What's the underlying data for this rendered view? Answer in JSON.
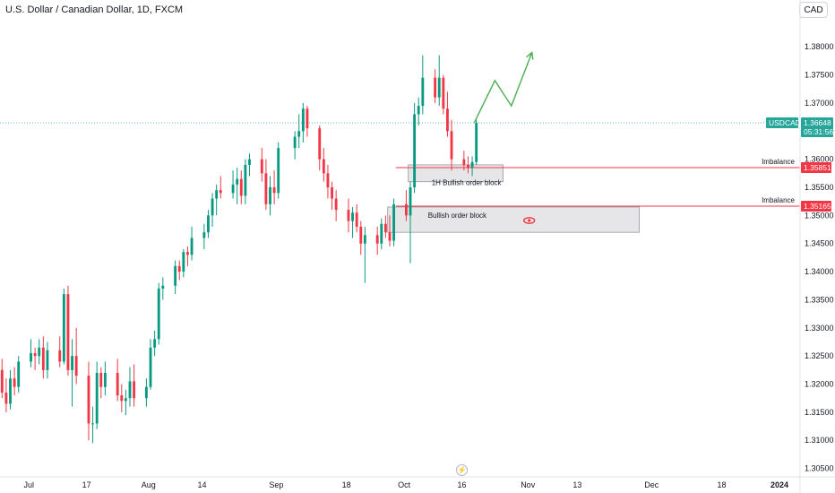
{
  "header": {
    "title": "U.S. Dollar / Canadian Dollar, 1D, FXCM",
    "currency_button": "CAD"
  },
  "colors": {
    "up": "#089981",
    "down": "#f23645",
    "price_line": "#26a69a",
    "imbalance_line": "#f23645",
    "zone_fill": "#e6e6e8",
    "projection": "#4caf50",
    "eye_icon": "#f23645"
  },
  "axis": {
    "y_ticks": [
      "1.38000",
      "1.37500",
      "1.37000",
      "1.36500",
      "1.36000",
      "1.35500",
      "1.35000",
      "1.34500",
      "1.34000",
      "1.33500",
      "1.33000",
      "1.32500",
      "1.32000",
      "1.31500",
      "1.31000",
      "1.30500"
    ],
    "x_ticks": [
      {
        "label": "Jul",
        "date": "2023-07-03",
        "bold": false
      },
      {
        "label": "17",
        "date": "2023-07-17",
        "bold": false
      },
      {
        "label": "Aug",
        "date": "2023-08-01",
        "bold": false
      },
      {
        "label": "14",
        "date": "2023-08-14",
        "bold": false
      },
      {
        "label": "Sep",
        "date": "2023-09-01",
        "bold": false
      },
      {
        "label": "18",
        "date": "2023-09-18",
        "bold": false
      },
      {
        "label": "Oct",
        "date": "2023-10-02",
        "bold": false
      },
      {
        "label": "16",
        "date": "2023-10-16",
        "bold": false
      },
      {
        "label": "Nov",
        "date": "2023-11-01",
        "bold": false
      },
      {
        "label": "13",
        "date": "2023-11-13",
        "bold": false
      },
      {
        "label": "Dec",
        "date": "2023-12-01",
        "bold": false
      },
      {
        "label": "18",
        "date": "2023-12-18",
        "bold": false
      },
      {
        "label": "2024",
        "date": "2024-01-01",
        "bold": true
      }
    ]
  },
  "price_tags": {
    "symbol": "USDCAD",
    "last_price": "1.36648",
    "countdown": "05:31:56",
    "imbalance_label_1": "Imbalance",
    "imbalance_price_1": "1.35851",
    "imbalance_label_2": "Imbalance",
    "imbalance_price_2": "1.35165"
  },
  "zones": {
    "zone1_label": "1H Bullish order block",
    "zone2_label": "Bullish order block"
  },
  "chart_data": {
    "type": "candlestick",
    "title": "U.S. Dollar / Canadian Dollar, 1D, FXCM",
    "y_range": [
      1.3035,
      1.3845
    ],
    "x_range": [
      "2023-06-26",
      "2024-01-06"
    ],
    "last_price": 1.36648,
    "candles": [
      {
        "date": "2023-06-26",
        "o": 1.3225,
        "h": 1.3245,
        "l": 1.3175,
        "c": 1.3185
      },
      {
        "date": "2023-06-27",
        "o": 1.3185,
        "h": 1.321,
        "l": 1.315,
        "c": 1.3165
      },
      {
        "date": "2023-06-28",
        "o": 1.3165,
        "h": 1.3225,
        "l": 1.3155,
        "c": 1.321
      },
      {
        "date": "2023-06-29",
        "o": 1.321,
        "h": 1.323,
        "l": 1.318,
        "c": 1.3195
      },
      {
        "date": "2023-06-30",
        "o": 1.3195,
        "h": 1.325,
        "l": 1.3185,
        "c": 1.324
      },
      {
        "date": "2023-07-03",
        "o": 1.324,
        "h": 1.328,
        "l": 1.323,
        "c": 1.3255
      },
      {
        "date": "2023-07-04",
        "o": 1.3255,
        "h": 1.3265,
        "l": 1.3225,
        "c": 1.325
      },
      {
        "date": "2023-07-05",
        "o": 1.325,
        "h": 1.328,
        "l": 1.3235,
        "c": 1.3265
      },
      {
        "date": "2023-07-06",
        "o": 1.3265,
        "h": 1.3285,
        "l": 1.321,
        "c": 1.3225
      },
      {
        "date": "2023-07-07",
        "o": 1.3225,
        "h": 1.3275,
        "l": 1.321,
        "c": 1.326
      },
      {
        "date": "2023-07-10",
        "o": 1.326,
        "h": 1.3285,
        "l": 1.323,
        "c": 1.324
      },
      {
        "date": "2023-07-11",
        "o": 1.324,
        "h": 1.337,
        "l": 1.3235,
        "c": 1.336
      },
      {
        "date": "2023-07-12",
        "o": 1.336,
        "h": 1.3375,
        "l": 1.3215,
        "c": 1.3225
      },
      {
        "date": "2023-07-13",
        "o": 1.3225,
        "h": 1.328,
        "l": 1.316,
        "c": 1.325
      },
      {
        "date": "2023-07-14",
        "o": 1.325,
        "h": 1.33,
        "l": 1.32,
        "c": 1.3215
      },
      {
        "date": "2023-07-17",
        "o": 1.3215,
        "h": 1.324,
        "l": 1.31,
        "c": 1.313
      },
      {
        "date": "2023-07-18",
        "o": 1.313,
        "h": 1.316,
        "l": 1.3095,
        "c": 1.313
      },
      {
        "date": "2023-07-19",
        "o": 1.313,
        "h": 1.324,
        "l": 1.312,
        "c": 1.322
      },
      {
        "date": "2023-07-20",
        "o": 1.322,
        "h": 1.323,
        "l": 1.3175,
        "c": 1.3195
      },
      {
        "date": "2023-07-21",
        "o": 1.3195,
        "h": 1.324,
        "l": 1.318,
        "c": 1.322
      },
      {
        "date": "2023-07-24",
        "o": 1.322,
        "h": 1.3245,
        "l": 1.317,
        "c": 1.318
      },
      {
        "date": "2023-07-25",
        "o": 1.318,
        "h": 1.32,
        "l": 1.315,
        "c": 1.317
      },
      {
        "date": "2023-07-26",
        "o": 1.317,
        "h": 1.319,
        "l": 1.3145,
        "c": 1.3175
      },
      {
        "date": "2023-07-27",
        "o": 1.3175,
        "h": 1.323,
        "l": 1.316,
        "c": 1.3205
      },
      {
        "date": "2023-07-28",
        "o": 1.3205,
        "h": 1.3235,
        "l": 1.316,
        "c": 1.3175
      },
      {
        "date": "2023-07-31",
        "o": 1.3175,
        "h": 1.321,
        "l": 1.316,
        "c": 1.3195
      },
      {
        "date": "2023-08-01",
        "o": 1.3195,
        "h": 1.328,
        "l": 1.319,
        "c": 1.3265
      },
      {
        "date": "2023-08-02",
        "o": 1.3265,
        "h": 1.3295,
        "l": 1.325,
        "c": 1.328
      },
      {
        "date": "2023-08-03",
        "o": 1.328,
        "h": 1.338,
        "l": 1.327,
        "c": 1.337
      },
      {
        "date": "2023-08-04",
        "o": 1.337,
        "h": 1.339,
        "l": 1.335,
        "c": 1.3375
      },
      {
        "date": "2023-08-07",
        "o": 1.3375,
        "h": 1.342,
        "l": 1.336,
        "c": 1.341
      },
      {
        "date": "2023-08-08",
        "o": 1.341,
        "h": 1.342,
        "l": 1.3385,
        "c": 1.34
      },
      {
        "date": "2023-08-09",
        "o": 1.34,
        "h": 1.344,
        "l": 1.339,
        "c": 1.3435
      },
      {
        "date": "2023-08-10",
        "o": 1.3435,
        "h": 1.3445,
        "l": 1.341,
        "c": 1.343
      },
      {
        "date": "2023-08-11",
        "o": 1.343,
        "h": 1.348,
        "l": 1.342,
        "c": 1.346
      },
      {
        "date": "2023-08-14",
        "o": 1.346,
        "h": 1.3485,
        "l": 1.344,
        "c": 1.347
      },
      {
        "date": "2023-08-15",
        "o": 1.347,
        "h": 1.351,
        "l": 1.346,
        "c": 1.35
      },
      {
        "date": "2023-08-16",
        "o": 1.35,
        "h": 1.354,
        "l": 1.348,
        "c": 1.353
      },
      {
        "date": "2023-08-17",
        "o": 1.353,
        "h": 1.3555,
        "l": 1.35,
        "c": 1.3545
      },
      {
        "date": "2023-08-18",
        "o": 1.3545,
        "h": 1.357,
        "l": 1.353,
        "c": 1.354
      },
      {
        "date": "2023-08-21",
        "o": 1.354,
        "h": 1.358,
        "l": 1.353,
        "c": 1.3555
      },
      {
        "date": "2023-08-22",
        "o": 1.3555,
        "h": 1.3585,
        "l": 1.352,
        "c": 1.3565
      },
      {
        "date": "2023-08-23",
        "o": 1.3565,
        "h": 1.358,
        "l": 1.352,
        "c": 1.3535
      },
      {
        "date": "2023-08-24",
        "o": 1.3535,
        "h": 1.36,
        "l": 1.352,
        "c": 1.359
      },
      {
        "date": "2023-08-25",
        "o": 1.359,
        "h": 1.361,
        "l": 1.357,
        "c": 1.36
      },
      {
        "date": "2023-08-28",
        "o": 1.36,
        "h": 1.362,
        "l": 1.356,
        "c": 1.3575
      },
      {
        "date": "2023-08-29",
        "o": 1.3575,
        "h": 1.36,
        "l": 1.351,
        "c": 1.352
      },
      {
        "date": "2023-08-30",
        "o": 1.352,
        "h": 1.357,
        "l": 1.35,
        "c": 1.355
      },
      {
        "date": "2023-08-31",
        "o": 1.355,
        "h": 1.358,
        "l": 1.352,
        "c": 1.354
      },
      {
        "date": "2023-09-01",
        "o": 1.354,
        "h": 1.363,
        "l": 1.353,
        "c": 1.362
      },
      {
        "date": "2023-09-05",
        "o": 1.362,
        "h": 1.365,
        "l": 1.36,
        "c": 1.364
      },
      {
        "date": "2023-09-06",
        "o": 1.364,
        "h": 1.368,
        "l": 1.362,
        "c": 1.365
      },
      {
        "date": "2023-09-07",
        "o": 1.365,
        "h": 1.37,
        "l": 1.363,
        "c": 1.369
      },
      {
        "date": "2023-09-08",
        "o": 1.369,
        "h": 1.3695,
        "l": 1.364,
        "c": 1.3655
      },
      {
        "date": "2023-09-11",
        "o": 1.3655,
        "h": 1.366,
        "l": 1.358,
        "c": 1.36
      },
      {
        "date": "2023-09-12",
        "o": 1.36,
        "h": 1.362,
        "l": 1.356,
        "c": 1.3575
      },
      {
        "date": "2023-09-13",
        "o": 1.3575,
        "h": 1.359,
        "l": 1.353,
        "c": 1.355
      },
      {
        "date": "2023-09-14",
        "o": 1.355,
        "h": 1.356,
        "l": 1.351,
        "c": 1.353
      },
      {
        "date": "2023-09-15",
        "o": 1.353,
        "h": 1.3545,
        "l": 1.349,
        "c": 1.351
      },
      {
        "date": "2023-09-18",
        "o": 1.351,
        "h": 1.353,
        "l": 1.347,
        "c": 1.349
      },
      {
        "date": "2023-09-19",
        "o": 1.349,
        "h": 1.3515,
        "l": 1.346,
        "c": 1.3505
      },
      {
        "date": "2023-09-20",
        "o": 1.3505,
        "h": 1.352,
        "l": 1.347,
        "c": 1.348
      },
      {
        "date": "2023-09-21",
        "o": 1.348,
        "h": 1.349,
        "l": 1.343,
        "c": 1.345
      },
      {
        "date": "2023-09-22",
        "o": 1.345,
        "h": 1.348,
        "l": 1.338,
        "c": 1.3465
      },
      {
        "date": "2023-09-25",
        "o": 1.3465,
        "h": 1.348,
        "l": 1.343,
        "c": 1.345
      },
      {
        "date": "2023-09-26",
        "o": 1.345,
        "h": 1.3495,
        "l": 1.344,
        "c": 1.3485
      },
      {
        "date": "2023-09-27",
        "o": 1.3485,
        "h": 1.35,
        "l": 1.346,
        "c": 1.347
      },
      {
        "date": "2023-09-28",
        "o": 1.347,
        "h": 1.35,
        "l": 1.3445,
        "c": 1.3455
      },
      {
        "date": "2023-09-29",
        "o": 1.3455,
        "h": 1.353,
        "l": 1.3445,
        "c": 1.352
      },
      {
        "date": "2023-10-02",
        "o": 1.352,
        "h": 1.3545,
        "l": 1.349,
        "c": 1.35
      },
      {
        "date": "2023-10-03",
        "o": 1.35,
        "h": 1.356,
        "l": 1.3415,
        "c": 1.355
      },
      {
        "date": "2023-10-04",
        "o": 1.355,
        "h": 1.37,
        "l": 1.354,
        "c": 1.368
      },
      {
        "date": "2023-10-05",
        "o": 1.368,
        "h": 1.371,
        "l": 1.366,
        "c": 1.3695
      },
      {
        "date": "2023-10-06",
        "o": 1.3695,
        "h": 1.3785,
        "l": 1.368,
        "c": 1.3745
      },
      {
        "date": "2023-10-09",
        "o": 1.3745,
        "h": 1.376,
        "l": 1.37,
        "c": 1.371
      },
      {
        "date": "2023-10-10",
        "o": 1.371,
        "h": 1.3785,
        "l": 1.3695,
        "c": 1.3745
      },
      {
        "date": "2023-10-11",
        "o": 1.3745,
        "h": 1.375,
        "l": 1.368,
        "c": 1.369
      },
      {
        "date": "2023-10-12",
        "o": 1.369,
        "h": 1.372,
        "l": 1.364,
        "c": 1.365
      },
      {
        "date": "2023-10-13",
        "o": 1.365,
        "h": 1.367,
        "l": 1.358,
        "c": 1.36
      },
      {
        "date": "2023-10-16",
        "o": 1.36,
        "h": 1.3615,
        "l": 1.358,
        "c": 1.359
      },
      {
        "date": "2023-10-17",
        "o": 1.359,
        "h": 1.3605,
        "l": 1.3575,
        "c": 1.3585
      },
      {
        "date": "2023-10-18",
        "o": 1.3585,
        "h": 1.3605,
        "l": 1.357,
        "c": 1.3595
      },
      {
        "date": "2023-10-19",
        "o": 1.3595,
        "h": 1.367,
        "l": 1.359,
        "c": 1.36648
      }
    ],
    "zones": [
      {
        "label": "1H Bullish order block",
        "start": "2023-10-03",
        "end": "2023-10-26",
        "low": 1.356,
        "high": 1.359
      },
      {
        "label": "Bullish order block",
        "start": "2023-09-28",
        "end": "2023-11-28",
        "low": 1.347,
        "high": 1.3515
      }
    ],
    "imbalance_levels": [
      {
        "label": "Imbalance",
        "price": 1.35851,
        "start": "2023-09-30"
      },
      {
        "label": "Imbalance",
        "price": 1.35165,
        "start": "2023-09-30"
      }
    ],
    "projection_path": [
      {
        "date": "2023-10-19",
        "price": 1.3665
      },
      {
        "date": "2023-10-24",
        "price": 1.374
      },
      {
        "date": "2023-10-28",
        "price": 1.3695
      },
      {
        "date": "2023-11-02",
        "price": 1.379
      }
    ]
  }
}
